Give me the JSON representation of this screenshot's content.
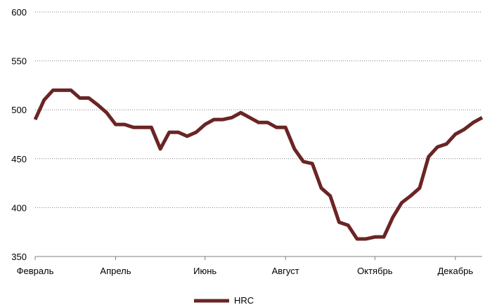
{
  "chart_data": {
    "type": "line",
    "title": "",
    "xlabel": "",
    "ylabel": "",
    "ylim": [
      350,
      600
    ],
    "yticks": [
      350,
      400,
      450,
      500,
      550,
      600
    ],
    "grid": "horizontal dotted",
    "legend_position": "bottom-center",
    "x_tick_labels": [
      "Февраль",
      "Апрель",
      "Июнь",
      "Август",
      "Октябрь",
      "Декабрь"
    ],
    "x_tick_positions": [
      0,
      9,
      19,
      28,
      38,
      47
    ],
    "series": [
      {
        "name": "HRC",
        "color": "#6b2424",
        "values": [
          490,
          510,
          520,
          520,
          520,
          512,
          512,
          505,
          497,
          485,
          485,
          482,
          482,
          482,
          460,
          477,
          477,
          473,
          477,
          485,
          490,
          490,
          492,
          497,
          492,
          487,
          487,
          482,
          482,
          460,
          447,
          445,
          420,
          412,
          385,
          382,
          368,
          368,
          370,
          370,
          390,
          405,
          412,
          420,
          452,
          462,
          465,
          475,
          480,
          487,
          492
        ]
      }
    ]
  }
}
